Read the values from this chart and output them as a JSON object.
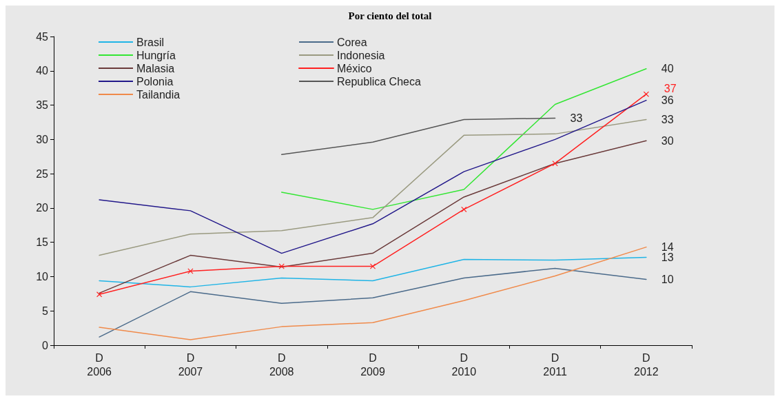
{
  "chart_data": {
    "type": "line",
    "title": "Por ciento del total",
    "categories": [
      "D\n2006",
      "D\n2007",
      "D\n2008",
      "D\n2009",
      "D\n2010",
      "D\n2011",
      "D\n2012"
    ],
    "ylim": [
      0,
      45
    ],
    "yticks": [
      0,
      5,
      10,
      15,
      20,
      25,
      30,
      35,
      40,
      45
    ],
    "grid": false,
    "legend": "top left",
    "marker": "none",
    "line_style": "solid",
    "series": [
      {
        "name": "Brasil",
        "color": "#1fb4e6",
        "values": [
          9.4,
          8.5,
          9.8,
          9.4,
          12.5,
          12.4,
          12.8
        ],
        "value_labels": [
          null,
          null,
          null,
          null,
          null,
          null,
          "13"
        ]
      },
      {
        "name": "Corea",
        "color": "#4a6a8a",
        "values": [
          1.2,
          7.8,
          6.1,
          6.9,
          9.8,
          11.2,
          9.6
        ],
        "value_labels": [
          null,
          null,
          null,
          null,
          null,
          null,
          "10"
        ]
      },
      {
        "name": "Hungría",
        "color": "#33e633",
        "values": [
          null,
          null,
          22.3,
          19.8,
          22.7,
          35.1,
          40.3
        ],
        "value_labels": [
          null,
          null,
          null,
          null,
          null,
          null,
          "40"
        ]
      },
      {
        "name": "Indonesia",
        "color": "#9a9a80",
        "values": [
          13.1,
          16.2,
          16.7,
          18.6,
          30.6,
          30.8,
          32.9
        ],
        "value_labels": [
          null,
          null,
          null,
          null,
          null,
          null,
          "33"
        ]
      },
      {
        "name": "Malasia",
        "color": "#6a3a3a",
        "values": [
          7.6,
          13.1,
          11.4,
          13.4,
          21.6,
          26.5,
          29.8
        ],
        "value_labels": [
          null,
          null,
          null,
          null,
          null,
          null,
          "30"
        ]
      },
      {
        "name": "México",
        "color": "#ff2020",
        "marker": "cross",
        "values": [
          7.4,
          10.8,
          11.5,
          11.5,
          19.8,
          26.5,
          36.6
        ],
        "value_labels": [
          null,
          null,
          null,
          null,
          null,
          null,
          "37"
        ]
      },
      {
        "name": "Polonia",
        "color": "#22188a",
        "values": [
          21.2,
          19.6,
          13.4,
          17.7,
          25.3,
          30.0,
          35.7
        ],
        "value_labels": [
          null,
          null,
          null,
          null,
          null,
          null,
          "36"
        ]
      },
      {
        "name": "Republica Checa",
        "color": "#555555",
        "values": [
          null,
          null,
          27.8,
          29.6,
          32.9,
          33.1,
          null
        ],
        "value_labels": [
          null,
          null,
          null,
          null,
          null,
          "33",
          null
        ]
      },
      {
        "name": "Tailandia",
        "color": "#f08a4a",
        "values": [
          2.6,
          0.8,
          2.7,
          3.3,
          6.5,
          10.1,
          14.3
        ],
        "value_labels": [
          null,
          null,
          null,
          null,
          null,
          null,
          "14"
        ]
      }
    ]
  }
}
